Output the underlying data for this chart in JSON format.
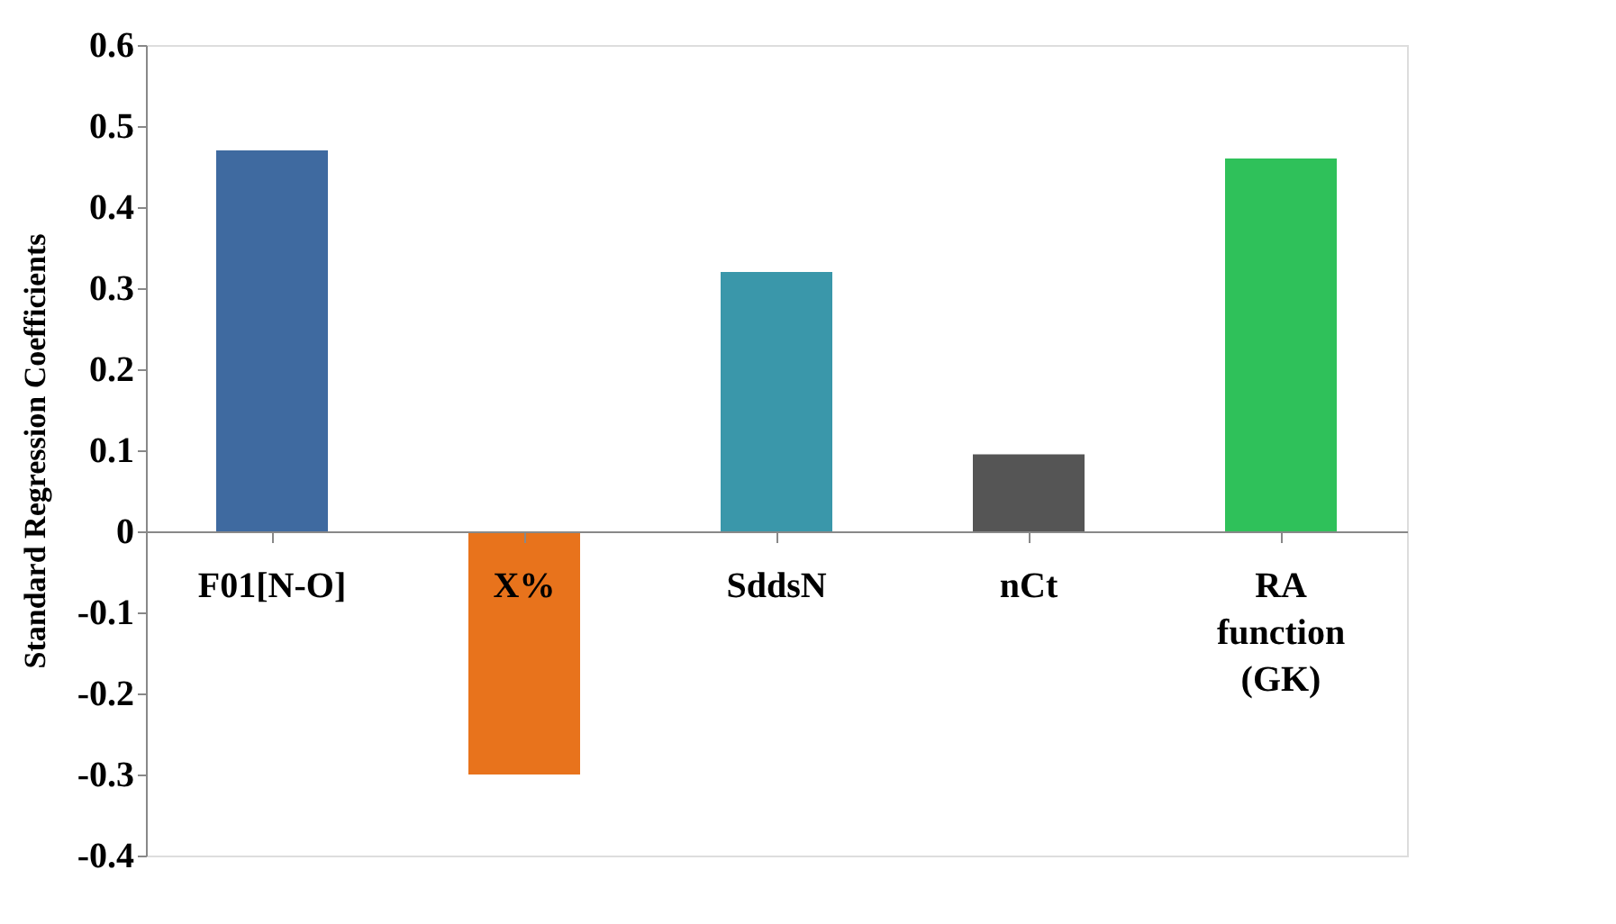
{
  "chart_data": {
    "type": "bar",
    "ylabel": "Standard Regression Coefficients",
    "categories": [
      "F01[N-O]",
      "X%",
      "SddsN",
      "nCt",
      "RA function (GK)"
    ],
    "values": [
      0.47,
      -0.3,
      0.32,
      0.095,
      0.46
    ],
    "colors": [
      "#3f6aa0",
      "#e8731c",
      "#3a97aa",
      "#555555",
      "#2fc15a"
    ],
    "ylim": [
      -0.4,
      0.6
    ],
    "yticks": [
      -0.4,
      -0.3,
      -0.2,
      -0.1,
      0,
      0.1,
      0.2,
      0.3,
      0.4,
      0.5,
      0.6
    ],
    "grid": false
  }
}
